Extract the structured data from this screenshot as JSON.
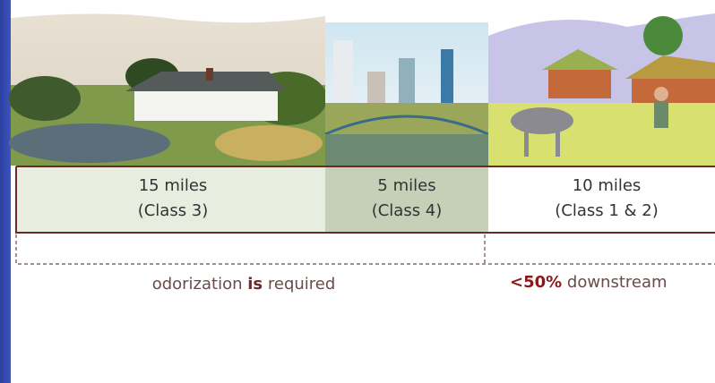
{
  "segments": [
    {
      "distance": "15 miles",
      "class": "(Class 3)"
    },
    {
      "distance": "5 miles",
      "class": "(Class 4)"
    },
    {
      "distance": "10 miles",
      "class": "(Class 1 & 2)"
    }
  ],
  "notes": [
    {
      "parts": [
        "odorization ",
        "is",
        " required"
      ]
    },
    {
      "parts": [
        "<50%",
        " downstream"
      ]
    }
  ]
}
